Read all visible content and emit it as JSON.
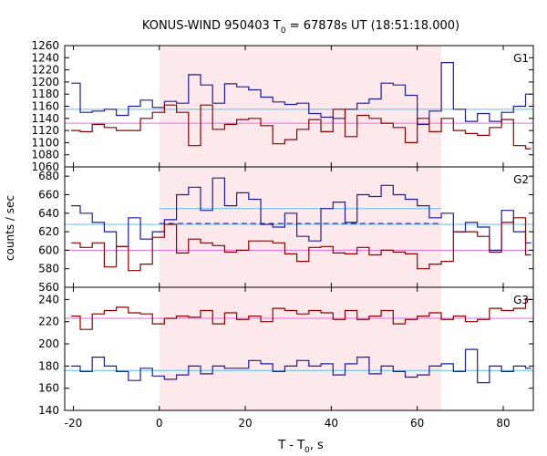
{
  "chart_data": [
    {
      "type": "line",
      "panel": "G1",
      "title": "KONUS-WIND 950403 T₀ = 67878s UT (18:51:18.000)",
      "title_parts": {
        "pre": "KONUS-WIND 950403 T",
        "sub": "0",
        "post": " = 67878s UT (18:51:18.000)"
      },
      "label": "G1",
      "ylim": [
        1060,
        1260
      ],
      "yticks": [
        1060,
        1080,
        1100,
        1120,
        1140,
        1160,
        1180,
        1200,
        1220,
        1240,
        1260
      ],
      "x_edges": [
        -20.5,
        -18.4,
        -15.6,
        -12.8,
        -10.0,
        -7.2,
        -4.4,
        -1.6,
        1.2,
        4.0,
        6.8,
        9.6,
        12.4,
        15.2,
        18.0,
        20.8,
        23.6,
        26.4,
        29.2,
        32.0,
        34.8,
        37.6,
        40.4,
        43.2,
        46.0,
        48.8,
        51.6,
        54.4,
        57.2,
        60.0,
        62.8,
        65.6,
        68.4,
        71.2,
        74.0,
        76.8,
        79.6,
        82.4,
        85.2,
        86.5
      ],
      "series": [
        {
          "color": "#1c1ca0",
          "values": [
            1198,
            1150,
            1152,
            1155,
            1145,
            1160,
            1170,
            1158,
            1168,
            1165,
            1212,
            1195,
            1165,
            1197,
            1192,
            1187,
            1175,
            1167,
            1163,
            1165,
            1148,
            1142,
            1140,
            1155,
            1165,
            1172,
            1198,
            1195,
            1178,
            1130,
            1152,
            1232,
            1155,
            1135,
            1148,
            1135,
            1150,
            1160,
            1180
          ]
        },
        {
          "color": "#8b0000",
          "values": [
            1120,
            1118,
            1130,
            1125,
            1120,
            1120,
            1140,
            1150,
            1162,
            1150,
            1095,
            1162,
            1122,
            1130,
            1138,
            1140,
            1128,
            1098,
            1105,
            1122,
            1138,
            1118,
            1155,
            1110,
            1145,
            1140,
            1132,
            1125,
            1100,
            1140,
            1118,
            1140,
            1120,
            1115,
            1112,
            1125,
            1138,
            1095,
            1090
          ]
        }
      ],
      "ref_lines": [
        {
          "color": "#5fc0ea",
          "value": 1155
        },
        {
          "color": "#e26ee2",
          "value": 1132
        }
      ]
    },
    {
      "type": "line",
      "panel": "G2",
      "label": "G2",
      "ylabel": "counts / sec",
      "ylim": [
        560,
        690
      ],
      "yticks": [
        560,
        580,
        600,
        620,
        640,
        660,
        680
      ],
      "x_edges": [
        -20.5,
        -18.4,
        -15.6,
        -12.8,
        -10.0,
        -7.2,
        -4.4,
        -1.6,
        1.2,
        4.0,
        6.8,
        9.6,
        12.4,
        15.2,
        18.0,
        20.8,
        23.6,
        26.4,
        29.2,
        32.0,
        34.8,
        37.6,
        40.4,
        43.2,
        46.0,
        48.8,
        51.6,
        54.4,
        57.2,
        60.0,
        62.8,
        65.6,
        68.4,
        71.2,
        74.0,
        76.8,
        79.6,
        82.4,
        85.2,
        86.5
      ],
      "series": [
        {
          "color": "#1c1ca0",
          "values": [
            648,
            640,
            630,
            620,
            604,
            635,
            612,
            620,
            633,
            660,
            668,
            643,
            678,
            648,
            662,
            655,
            628,
            625,
            640,
            615,
            610,
            645,
            652,
            630,
            660,
            658,
            670,
            660,
            655,
            648,
            635,
            640,
            620,
            630,
            625,
            600,
            643,
            620,
            608
          ]
        },
        {
          "color": "#8b0000",
          "values": [
            608,
            603,
            608,
            582,
            604,
            578,
            585,
            614,
            628,
            597,
            612,
            608,
            605,
            598,
            600,
            610,
            610,
            608,
            596,
            588,
            603,
            604,
            597,
            596,
            603,
            595,
            600,
            598,
            596,
            580,
            585,
            588,
            620,
            620,
            615,
            598,
            630,
            635,
            595
          ]
        }
      ],
      "ref_lines": [
        {
          "color": "#5fc0ea",
          "value": 645,
          "x_range": [
            0,
            65.6
          ]
        },
        {
          "color": "#5fc0ea",
          "value": 628
        },
        {
          "color": "#1c1ca0",
          "value": 629,
          "dashed": true,
          "x_range": [
            0,
            65.6
          ]
        },
        {
          "color": "#e26ee2",
          "value": 600
        }
      ]
    },
    {
      "type": "line",
      "panel": "G3",
      "label": "G3",
      "xlabel_parts": {
        "pre": "T - T",
        "sub": "0",
        "post": ", s"
      },
      "ylim": [
        140,
        251
      ],
      "yticks": [
        140,
        160,
        180,
        200,
        220,
        240
      ],
      "xlim": [
        -22,
        87
      ],
      "xticks": [
        -20,
        0,
        20,
        40,
        60,
        80
      ],
      "x_edges": [
        -20.5,
        -18.4,
        -15.6,
        -12.8,
        -10.0,
        -7.2,
        -4.4,
        -1.6,
        1.2,
        4.0,
        6.8,
        9.6,
        12.4,
        15.2,
        18.0,
        20.8,
        23.6,
        26.4,
        29.2,
        32.0,
        34.8,
        37.6,
        40.4,
        43.2,
        46.0,
        48.8,
        51.6,
        54.4,
        57.2,
        60.0,
        62.8,
        65.6,
        68.4,
        71.2,
        74.0,
        76.8,
        79.6,
        82.4,
        85.2,
        86.5
      ],
      "series": [
        {
          "color": "#8b0000",
          "values": [
            225,
            213,
            227,
            230,
            233,
            228,
            227,
            218,
            223,
            225,
            224,
            230,
            218,
            228,
            222,
            225,
            220,
            232,
            230,
            227,
            230,
            228,
            222,
            230,
            222,
            225,
            230,
            218,
            222,
            225,
            228,
            222,
            225,
            220,
            222,
            232,
            230,
            232,
            240
          ]
        },
        {
          "color": "#1c1ca0",
          "values": [
            180,
            175,
            188,
            180,
            175,
            167,
            178,
            171,
            168,
            172,
            180,
            173,
            180,
            178,
            178,
            185,
            182,
            175,
            180,
            185,
            180,
            182,
            172,
            182,
            188,
            173,
            180,
            175,
            170,
            172,
            180,
            182,
            175,
            195,
            165,
            180,
            175,
            180,
            178
          ]
        }
      ],
      "ref_lines": [
        {
          "color": "#e26ee2",
          "value": 223
        },
        {
          "color": "#5fc0ea",
          "value": 176
        }
      ]
    }
  ],
  "shaded_interval": {
    "from": 0,
    "to": 65.6,
    "color": "#fde8ec"
  },
  "colors": {
    "axis": "#000000",
    "grid_tick": "#000000"
  }
}
